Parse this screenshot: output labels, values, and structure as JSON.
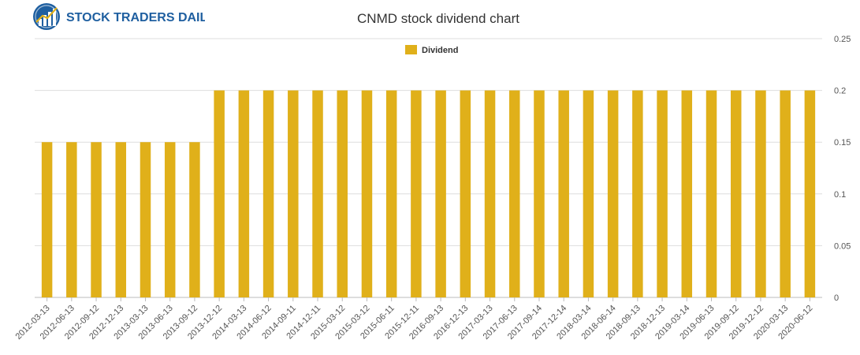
{
  "brand": {
    "name": "STOCK TRADERS DAILY",
    "color": "#1f5fa0"
  },
  "chart_data": {
    "type": "bar",
    "title": "CNMD stock dividend chart",
    "xlabel": "",
    "ylabel": "",
    "ylim": [
      0,
      0.25
    ],
    "yticks": [
      0,
      0.05,
      0.1,
      0.15,
      0.2,
      0.25
    ],
    "grid": true,
    "legend_position": "top-center",
    "bar_color": "#e0b01a",
    "categories": [
      "2012-03-13",
      "2012-06-13",
      "2012-09-12",
      "2012-12-13",
      "2013-03-13",
      "2013-06-13",
      "2013-09-12",
      "2013-12-12",
      "2014-03-13",
      "2014-06-12",
      "2014-09-11",
      "2014-12-11",
      "2015-03-12",
      "2015-03-12",
      "2015-06-11",
      "2015-12-11",
      "2016-09-13",
      "2016-12-13",
      "2017-03-13",
      "2017-06-13",
      "2017-09-14",
      "2017-12-14",
      "2018-03-14",
      "2018-06-14",
      "2018-09-13",
      "2018-12-13",
      "2019-03-14",
      "2019-06-13",
      "2019-09-12",
      "2019-12-12",
      "2020-03-13",
      "2020-06-12"
    ],
    "series": [
      {
        "name": "Dividend",
        "values": [
          0.15,
          0.15,
          0.15,
          0.15,
          0.15,
          0.15,
          0.15,
          0.2,
          0.2,
          0.2,
          0.2,
          0.2,
          0.2,
          0.2,
          0.2,
          0.2,
          0.2,
          0.2,
          0.2,
          0.2,
          0.2,
          0.2,
          0.2,
          0.2,
          0.2,
          0.2,
          0.2,
          0.2,
          0.2,
          0.2,
          0.2,
          0.2
        ]
      }
    ]
  }
}
